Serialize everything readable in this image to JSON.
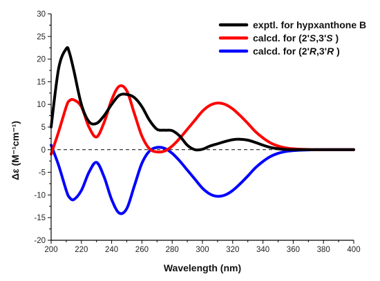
{
  "chart_data": {
    "type": "line",
    "xlabel": "Wavelength (nm)",
    "ylabel": "Δε (M⁻¹cm⁻¹)",
    "xlim": [
      200,
      400
    ],
    "ylim": [
      -20,
      30
    ],
    "x_ticks": [
      "200",
      "220",
      "240",
      "260",
      "280",
      "300",
      "320",
      "340",
      "360",
      "380",
      "400"
    ],
    "y_ticks": [
      "-20",
      "-15",
      "-10",
      "-5",
      "0",
      "5",
      "10",
      "15",
      "20",
      "25",
      "30"
    ],
    "zero_line": "dashed",
    "legend_position": "top-right",
    "x": [
      200,
      205,
      210,
      212,
      215,
      220,
      225,
      230,
      235,
      240,
      245,
      250,
      255,
      260,
      265,
      270,
      275,
      280,
      285,
      290,
      295,
      300,
      305,
      310,
      315,
      320,
      325,
      330,
      335,
      340,
      345,
      350,
      355,
      360,
      365,
      370,
      375,
      380,
      385,
      390,
      395,
      400
    ],
    "series": [
      {
        "name": "exptl. for hypxanthone B",
        "color": "#000000",
        "values": [
          5.0,
          18.0,
          22.3,
          21.5,
          17.5,
          10.0,
          6.2,
          5.8,
          7.5,
          10.0,
          12.0,
          12.2,
          11.5,
          9.5,
          6.5,
          4.5,
          4.3,
          4.2,
          3.0,
          1.0,
          0.0,
          0.1,
          0.8,
          1.3,
          1.8,
          2.2,
          2.3,
          2.1,
          1.6,
          1.0,
          0.5,
          0.2,
          0.05,
          0,
          0,
          0,
          0,
          0,
          0,
          0,
          0,
          0
        ]
      },
      {
        "name": "calcd. for (2'S,3'S)",
        "color": "#ff0000",
        "values": [
          -1.0,
          4.0,
          9.5,
          10.8,
          11.0,
          9.5,
          5.0,
          2.8,
          6.0,
          11.0,
          14.0,
          13.0,
          8.0,
          3.0,
          0.2,
          -0.5,
          -0.3,
          0.8,
          2.5,
          4.5,
          6.5,
          8.5,
          9.8,
          10.3,
          10.0,
          9.0,
          7.5,
          5.8,
          4.0,
          2.6,
          1.5,
          0.8,
          0.4,
          0.2,
          0.1,
          0.05,
          0,
          0,
          0,
          0,
          0,
          0
        ]
      },
      {
        "name": "calcd. for (2'R,3'R)",
        "color": "#0000ff",
        "values": [
          1.0,
          -3.5,
          -9.0,
          -10.5,
          -11.0,
          -9.0,
          -5.0,
          -2.8,
          -6.0,
          -11.0,
          -14.0,
          -13.0,
          -8.0,
          -3.0,
          -0.3,
          0.5,
          0.3,
          -0.8,
          -2.5,
          -4.5,
          -6.5,
          -8.5,
          -9.8,
          -10.3,
          -10.0,
          -9.0,
          -7.5,
          -5.8,
          -4.0,
          -2.6,
          -1.5,
          -0.8,
          -0.4,
          -0.2,
          -0.1,
          -0.05,
          0,
          0,
          0,
          0,
          0,
          0
        ]
      }
    ],
    "legend": {
      "entries": [
        {
          "prefix": "exptl. for hypxanthone ",
          "tail": "B"
        },
        {
          "prefix": "calcd. for (2'",
          "i1": "S",
          "mid": ",3'",
          "i2": "S",
          "suffix": " )"
        },
        {
          "prefix": "calcd. for (2'",
          "i1": "R",
          "mid": ",3'",
          "i2": "R",
          "suffix": " )"
        }
      ]
    }
  }
}
